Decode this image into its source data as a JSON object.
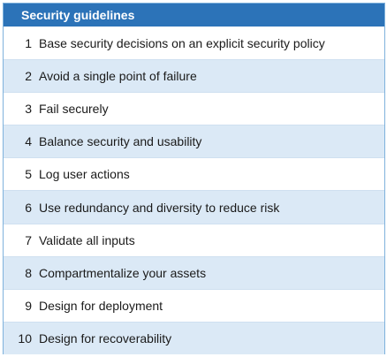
{
  "header": {
    "title": "Security guidelines"
  },
  "guidelines": [
    {
      "num": "1",
      "text": "Base security decisions on an explicit security policy"
    },
    {
      "num": "2",
      "text": "Avoid a single point of failure"
    },
    {
      "num": "3",
      "text": "Fail securely"
    },
    {
      "num": "4",
      "text": "Balance security and usability"
    },
    {
      "num": "5",
      "text": "Log user actions"
    },
    {
      "num": "6",
      "text": "Use redundancy and diversity to reduce risk"
    },
    {
      "num": "7",
      "text": "Validate all inputs"
    },
    {
      "num": "8",
      "text": "Compartmentalize your assets"
    },
    {
      "num": "9",
      "text": "Design for deployment"
    },
    {
      "num": "10",
      "text": "Design for recoverability"
    }
  ],
  "colors": {
    "header_bg": "#2c73b8",
    "alt_row_bg": "#dbe9f6",
    "border": "#7fb2dc"
  }
}
